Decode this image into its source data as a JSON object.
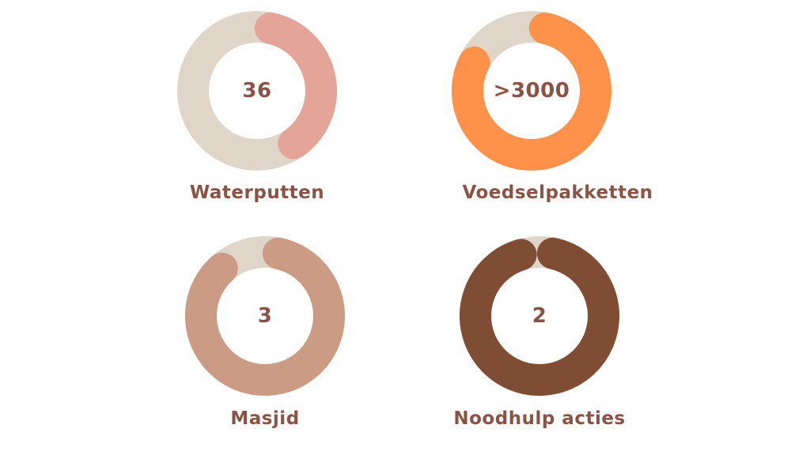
{
  "chart_data": [
    {
      "type": "donut",
      "value_label": "36",
      "label": "Waterputten",
      "fraction": 0.37,
      "colors": {
        "track": "#e0d5c9",
        "arc": "#e4a497"
      }
    },
    {
      "type": "donut",
      "value_label": ">3000",
      "label": "Voedselpakketten",
      "fraction": 0.79,
      "colors": {
        "track": "#e0d5c9",
        "arc": "#ff924a"
      }
    },
    {
      "type": "donut",
      "value_label": "3",
      "label": "Masjid",
      "fraction": 0.85,
      "colors": {
        "track": "#e0d5c9",
        "arc": "#cc9b84"
      }
    },
    {
      "type": "donut",
      "value_label": "2",
      "label": "Noodhulp acties",
      "fraction": 0.92,
      "colors": {
        "track": "#e0d5c9",
        "arc": "#7e4d33"
      }
    }
  ]
}
